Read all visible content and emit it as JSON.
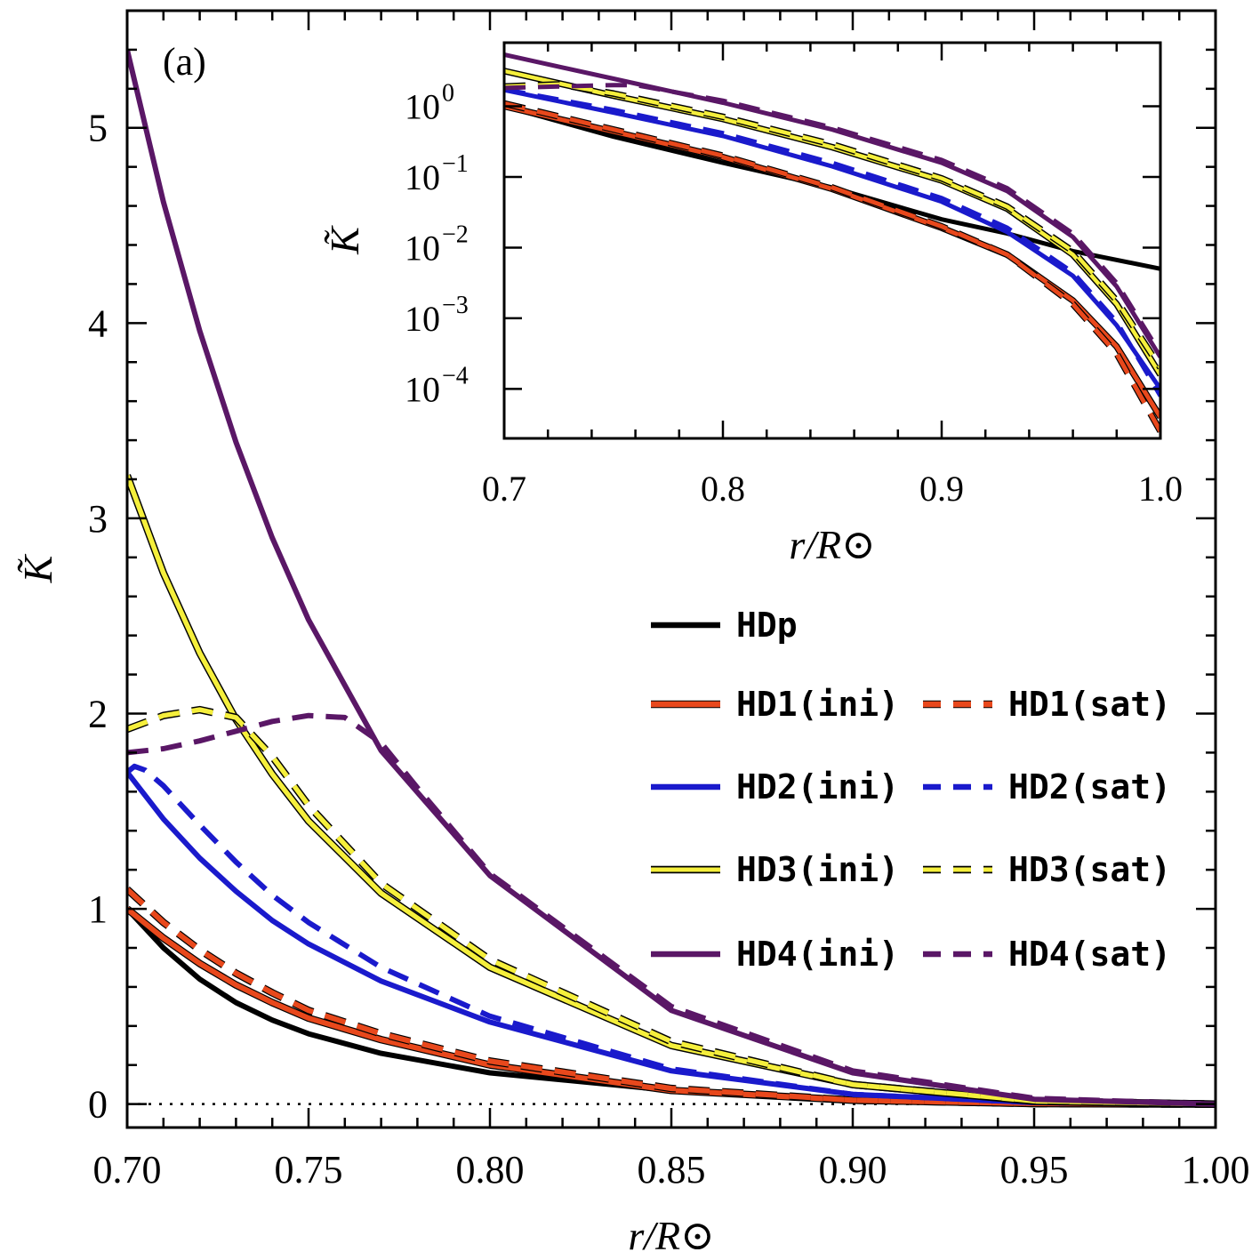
{
  "chart_data": [
    {
      "type": "line",
      "name": "main",
      "panel_label": "(a)",
      "xlabel": "r/R⊙",
      "ylabel": "K̃",
      "xlim": [
        0.7,
        1.0
      ],
      "ylim": [
        -0.12,
        5.6
      ],
      "xticks": [
        0.7,
        0.75,
        0.8,
        0.85,
        0.9,
        0.95,
        1.0
      ],
      "xtick_labels": [
        "0.70",
        "0.75",
        "0.80",
        "0.85",
        "0.90",
        "0.95",
        "1.00"
      ],
      "yticks": [
        0,
        1,
        2,
        3,
        4,
        5
      ],
      "ytick_labels": [
        "0",
        "1",
        "2",
        "3",
        "4",
        "5"
      ],
      "zero_line": true,
      "series": [
        {
          "name": "HDp",
          "color": "#000000",
          "dash": false,
          "x": [
            0.7,
            0.71,
            0.72,
            0.73,
            0.74,
            0.75,
            0.77,
            0.8,
            0.85,
            0.9,
            0.95,
            1.0
          ],
          "y": [
            1.0,
            0.8,
            0.64,
            0.52,
            0.43,
            0.36,
            0.26,
            0.16,
            0.07,
            0.025,
            0.008,
            0.005
          ]
        },
        {
          "name": "HD1(ini)",
          "color": "#e8481c",
          "dash": false,
          "x": [
            0.7,
            0.71,
            0.72,
            0.73,
            0.74,
            0.75,
            0.77,
            0.8,
            0.85,
            0.9,
            0.95,
            1.0
          ],
          "y": [
            1.0,
            0.85,
            0.72,
            0.61,
            0.52,
            0.44,
            0.33,
            0.2,
            0.07,
            0.02,
            0.003,
            0.0
          ]
        },
        {
          "name": "HD1(sat)",
          "color": "#e8481c",
          "dash": true,
          "x": [
            0.7,
            0.71,
            0.72,
            0.73,
            0.74,
            0.75,
            0.77,
            0.8,
            0.85,
            0.9,
            0.95,
            1.0
          ],
          "y": [
            1.1,
            0.93,
            0.79,
            0.67,
            0.57,
            0.48,
            0.36,
            0.22,
            0.08,
            0.02,
            0.003,
            0.0
          ]
        },
        {
          "name": "HD2(ini)",
          "color": "#1a1acc",
          "dash": false,
          "x": [
            0.7,
            0.71,
            0.72,
            0.73,
            0.74,
            0.75,
            0.77,
            0.8,
            0.85,
            0.9,
            0.95,
            1.0
          ],
          "y": [
            1.7,
            1.46,
            1.26,
            1.09,
            0.94,
            0.82,
            0.63,
            0.42,
            0.17,
            0.05,
            0.008,
            0.0
          ]
        },
        {
          "name": "HD2(sat)",
          "color": "#1a1acc",
          "dash": true,
          "x": [
            0.7,
            0.702,
            0.705,
            0.71,
            0.72,
            0.73,
            0.74,
            0.75,
            0.77,
            0.8,
            0.85,
            0.9,
            0.95,
            1.0
          ],
          "y": [
            1.7,
            1.73,
            1.71,
            1.63,
            1.43,
            1.24,
            1.07,
            0.93,
            0.7,
            0.45,
            0.18,
            0.05,
            0.008,
            0.0
          ]
        },
        {
          "name": "HD3(ini)",
          "color": "#f5ef3c",
          "dash": false,
          "x": [
            0.7,
            0.71,
            0.72,
            0.73,
            0.74,
            0.75,
            0.77,
            0.8,
            0.85,
            0.9,
            0.95,
            1.0
          ],
          "y": [
            3.22,
            2.72,
            2.31,
            1.97,
            1.69,
            1.45,
            1.08,
            0.7,
            0.3,
            0.1,
            0.015,
            0.0
          ]
        },
        {
          "name": "HD3(sat)",
          "color": "#f5ef3c",
          "dash": true,
          "x": [
            0.7,
            0.71,
            0.72,
            0.73,
            0.74,
            0.75,
            0.77,
            0.8,
            0.85,
            0.9,
            0.95,
            1.0
          ],
          "y": [
            1.92,
            1.99,
            2.02,
            1.98,
            1.78,
            1.53,
            1.13,
            0.74,
            0.32,
            0.1,
            0.016,
            0.0
          ]
        },
        {
          "name": "HD4(ini)",
          "color": "#5a1766",
          "dash": false,
          "x": [
            0.7,
            0.71,
            0.72,
            0.73,
            0.74,
            0.75,
            0.77,
            0.8,
            0.85,
            0.9,
            0.95,
            1.0
          ],
          "y": [
            5.4,
            4.62,
            3.96,
            3.39,
            2.9,
            2.48,
            1.81,
            1.17,
            0.48,
            0.16,
            0.025,
            0.0
          ]
        },
        {
          "name": "HD4(sat)",
          "color": "#5a1766",
          "dash": true,
          "x": [
            0.7,
            0.71,
            0.72,
            0.73,
            0.74,
            0.75,
            0.76,
            0.77,
            0.78,
            0.8,
            0.85,
            0.9,
            0.95,
            1.0
          ],
          "y": [
            1.8,
            1.82,
            1.86,
            1.91,
            1.96,
            1.99,
            1.98,
            1.85,
            1.62,
            1.18,
            0.5,
            0.17,
            0.03,
            0.0
          ]
        }
      ]
    },
    {
      "type": "line",
      "name": "inset",
      "yscale": "log",
      "xlabel": "r/R⊙",
      "ylabel": "K̃",
      "xlim": [
        0.7,
        1.0
      ],
      "ylim_log10": [
        -4.7,
        0.9
      ],
      "xticks": [
        0.7,
        0.8,
        0.9,
        1.0
      ],
      "xtick_labels": [
        "0.7",
        "0.8",
        "0.9",
        "1.0"
      ],
      "yticks_log10": [
        0,
        -1,
        -2,
        -3,
        -4
      ],
      "ytick_labels": [
        "10",
        "10",
        "10",
        "10",
        "10"
      ],
      "ytick_exponents": [
        "0",
        "−1",
        "−2",
        "−3",
        "−4"
      ],
      "series": [
        {
          "name": "HDp",
          "color": "#000000",
          "dash": false,
          "x": [
            0.7,
            0.75,
            0.8,
            0.85,
            0.9,
            0.93,
            0.96,
            1.0
          ],
          "log10y": [
            0.0,
            -0.43,
            -0.8,
            -1.15,
            -1.6,
            -1.8,
            -2.05,
            -2.3
          ]
        },
        {
          "name": "HD1(ini)",
          "color": "#e8481c",
          "dash": false,
          "x": [
            0.7,
            0.75,
            0.8,
            0.85,
            0.9,
            0.93,
            0.96,
            0.98,
            1.0
          ],
          "log10y": [
            0.0,
            -0.36,
            -0.72,
            -1.17,
            -1.72,
            -2.1,
            -2.75,
            -3.4,
            -4.4
          ]
        },
        {
          "name": "HD1(sat)",
          "color": "#e8481c",
          "dash": true,
          "x": [
            0.7,
            0.75,
            0.8,
            0.85,
            0.9,
            0.93,
            0.96,
            0.98,
            1.0
          ],
          "log10y": [
            0.04,
            -0.33,
            -0.7,
            -1.15,
            -1.7,
            -2.1,
            -2.8,
            -3.5,
            -4.6
          ]
        },
        {
          "name": "HD2(ini)",
          "color": "#1a1acc",
          "dash": false,
          "x": [
            0.7,
            0.75,
            0.8,
            0.85,
            0.9,
            0.93,
            0.96,
            0.98,
            1.0
          ],
          "log10y": [
            0.23,
            -0.09,
            -0.42,
            -0.85,
            -1.35,
            -1.78,
            -2.4,
            -3.1,
            -4.0
          ]
        },
        {
          "name": "HD2(sat)",
          "color": "#1a1acc",
          "dash": true,
          "x": [
            0.7,
            0.75,
            0.8,
            0.85,
            0.9,
            0.93,
            0.96,
            0.98,
            1.0
          ],
          "log10y": [
            0.24,
            -0.05,
            -0.38,
            -0.8,
            -1.3,
            -1.72,
            -2.35,
            -3.05,
            -4.1
          ]
        },
        {
          "name": "HD3(ini)",
          "color": "#f5ef3c",
          "dash": false,
          "x": [
            0.7,
            0.75,
            0.8,
            0.85,
            0.9,
            0.93,
            0.96,
            0.98,
            1.0
          ],
          "log10y": [
            0.5,
            0.15,
            -0.18,
            -0.58,
            -1.05,
            -1.45,
            -2.1,
            -2.8,
            -3.8
          ]
        },
        {
          "name": "HD3(sat)",
          "color": "#f5ef3c",
          "dash": true,
          "x": [
            0.7,
            0.725,
            0.75,
            0.8,
            0.85,
            0.9,
            0.93,
            0.96,
            0.98,
            1.0
          ],
          "log10y": [
            0.28,
            0.31,
            0.18,
            -0.15,
            -0.54,
            -1.02,
            -1.42,
            -2.05,
            -2.75,
            -3.7
          ]
        },
        {
          "name": "HD4(ini)",
          "color": "#5a1766",
          "dash": false,
          "x": [
            0.7,
            0.75,
            0.8,
            0.85,
            0.9,
            0.93,
            0.96,
            0.98,
            1.0
          ],
          "log10y": [
            0.73,
            0.39,
            0.05,
            -0.33,
            -0.8,
            -1.2,
            -1.85,
            -2.55,
            -3.55
          ]
        },
        {
          "name": "HD4(sat)",
          "color": "#5a1766",
          "dash": true,
          "x": [
            0.7,
            0.75,
            0.76,
            0.8,
            0.85,
            0.9,
            0.93,
            0.96,
            0.98,
            1.0
          ],
          "log10y": [
            0.26,
            0.3,
            0.3,
            0.08,
            -0.3,
            -0.76,
            -1.16,
            -1.8,
            -2.5,
            -3.5
          ]
        }
      ]
    }
  ],
  "legend": {
    "items": [
      {
        "label": "HDp",
        "color": "#000000",
        "dash": false
      },
      {
        "label": "HD1(ini)",
        "color": "#e8481c",
        "dash": false
      },
      {
        "label": "HD1(sat)",
        "color": "#e8481c",
        "dash": true
      },
      {
        "label": "HD2(ini)",
        "color": "#1a1acc",
        "dash": false
      },
      {
        "label": "HD2(sat)",
        "color": "#1a1acc",
        "dash": true
      },
      {
        "label": "HD3(ini)",
        "color": "#f5ef3c",
        "dash": false
      },
      {
        "label": "HD3(sat)",
        "color": "#f5ef3c",
        "dash": true
      },
      {
        "label": "HD4(ini)",
        "color": "#5a1766",
        "dash": false
      },
      {
        "label": "HD4(sat)",
        "color": "#5a1766",
        "dash": true
      }
    ]
  }
}
